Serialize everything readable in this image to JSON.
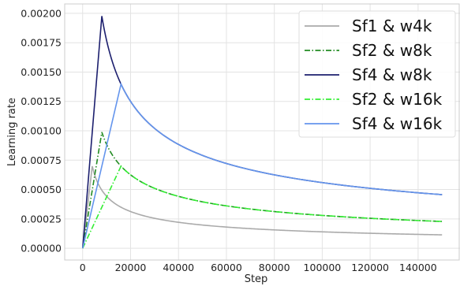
{
  "chart_data": {
    "type": "line",
    "title": "",
    "xlabel": "Step",
    "ylabel": "Learning rate",
    "xlim": [
      -7500,
      157500
    ],
    "ylim": [
      -0.0001,
      0.00208
    ],
    "xticks": [
      0,
      20000,
      40000,
      60000,
      80000,
      100000,
      120000,
      140000
    ],
    "xtick_labels": [
      "0",
      "20000",
      "40000",
      "60000",
      "80000",
      "100000",
      "120000",
      "140000"
    ],
    "yticks": [
      0,
      0.00025,
      0.0005,
      0.00075,
      0.001,
      0.00125,
      0.0015,
      0.00175,
      0.002
    ],
    "ytick_labels": [
      "0.00000",
      "0.00025",
      "0.00050",
      "0.00075",
      "0.00100",
      "0.00125",
      "0.00150",
      "0.00175",
      "0.00200"
    ],
    "grid": true,
    "legend_position": "top-right",
    "x_max": 150000,
    "series": [
      {
        "name": "Sf1 & w4k",
        "scale": 1,
        "warmup": 4000,
        "color": "#aaaaaa",
        "dash": "solid"
      },
      {
        "name": "Sf2 & w8k",
        "scale": 2,
        "warmup": 8000,
        "color": "#228b22",
        "dash": "dashdot"
      },
      {
        "name": "Sf4 & w8k",
        "scale": 4,
        "warmup": 8000,
        "color": "#1c1f6e",
        "dash": "solid"
      },
      {
        "name": "Sf2 & w16k",
        "scale": 2,
        "warmup": 16000,
        "color": "#33ee33",
        "dash": "dashdot"
      },
      {
        "name": "Sf4 & w16k",
        "scale": 4,
        "warmup": 16000,
        "color": "#6495ed",
        "dash": "solid"
      }
    ]
  }
}
